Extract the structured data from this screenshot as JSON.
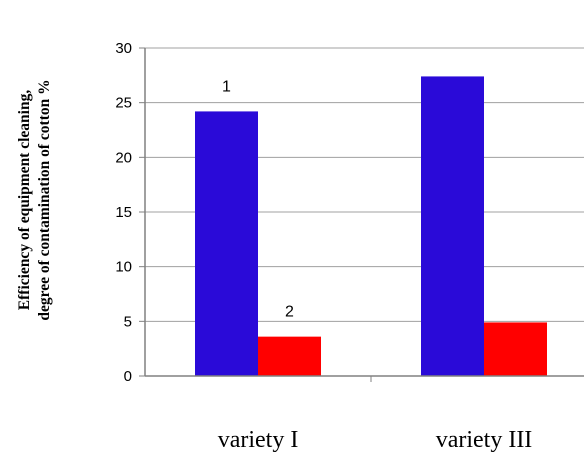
{
  "chart_data": {
    "type": "bar",
    "title": "",
    "ylabel_lines": [
      "Efficiency of equipment cleaning,",
      "degree of contamination of cotton %"
    ],
    "xlabel": "",
    "categories": [
      "variety I",
      "variety III"
    ],
    "series": [
      {
        "label": "1",
        "color": "#2a0ad8",
        "values": [
          24.2,
          27.4
        ]
      },
      {
        "label": "2",
        "color": "#ff0000",
        "values": [
          3.6,
          4.9
        ]
      }
    ],
    "ylim": [
      0,
      30
    ],
    "yticks": [
      "0",
      "5",
      "10",
      "15",
      "20",
      "25",
      "30"
    ],
    "grid": true,
    "gridlines_color": "#a0a0a0",
    "legend": "none"
  }
}
